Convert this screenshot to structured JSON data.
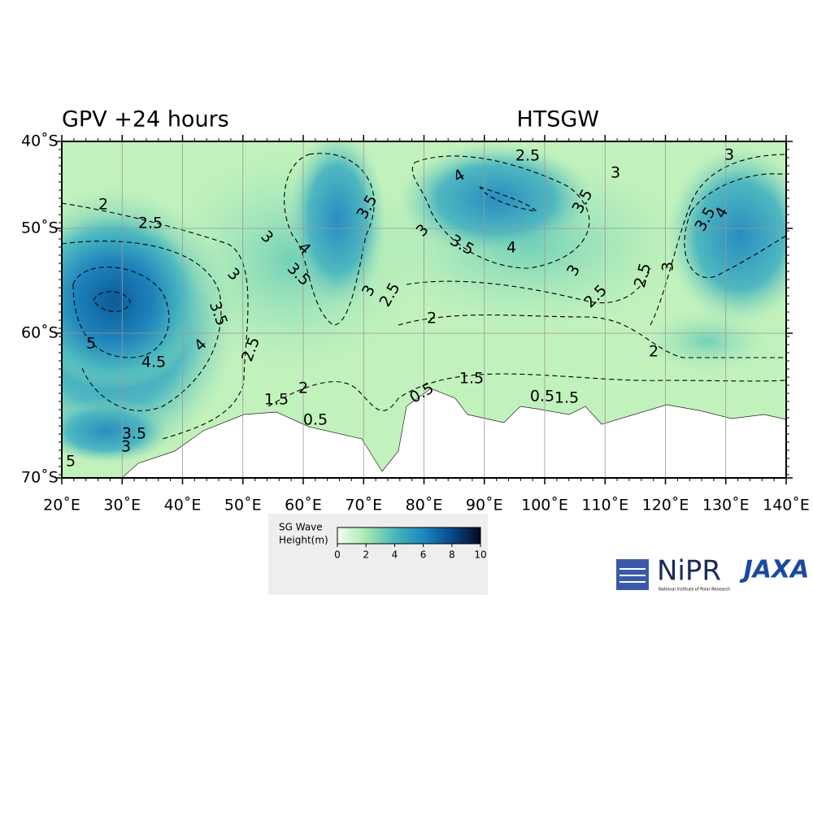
{
  "title_left": "GPV +24 hours",
  "title_right": "HTSGW",
  "lat_labels": [
    "40˚S",
    "50˚S",
    "60˚S",
    "70˚S"
  ],
  "lon_labels": [
    "20˚E",
    "30˚E",
    "40˚E",
    "50˚E",
    "60˚E",
    "70˚E",
    "80˚E",
    "90˚E",
    "100˚E",
    "110˚E",
    "120˚E",
    "130˚E",
    "140˚E"
  ],
  "contour_labels": [
    "2.5",
    "3",
    "4",
    "3",
    "3.5",
    "2",
    "2.5",
    "3.5",
    "3",
    "3.5",
    "4",
    "3",
    "4",
    "3.5",
    "4",
    "3",
    "3.5",
    "3",
    "2.5",
    "3",
    "3",
    "2.5",
    "2.5",
    "3.5",
    "2",
    "5",
    "4",
    "2.5",
    "4.5",
    "2",
    "2",
    "1.5",
    "0.5",
    "1.5",
    "0.5",
    "1.5",
    "0.5",
    "3.5",
    "3",
    "5"
  ],
  "colorbar": {
    "label_lines": [
      "SG Wave",
      "Height(m)"
    ],
    "ticks": [
      "0",
      "2",
      "4",
      "6",
      "8",
      "10"
    ]
  },
  "logos": {
    "nipr": "NiPR",
    "nipr_sub": "National Institute of Polar Research",
    "jaxa": "JAXA"
  }
}
